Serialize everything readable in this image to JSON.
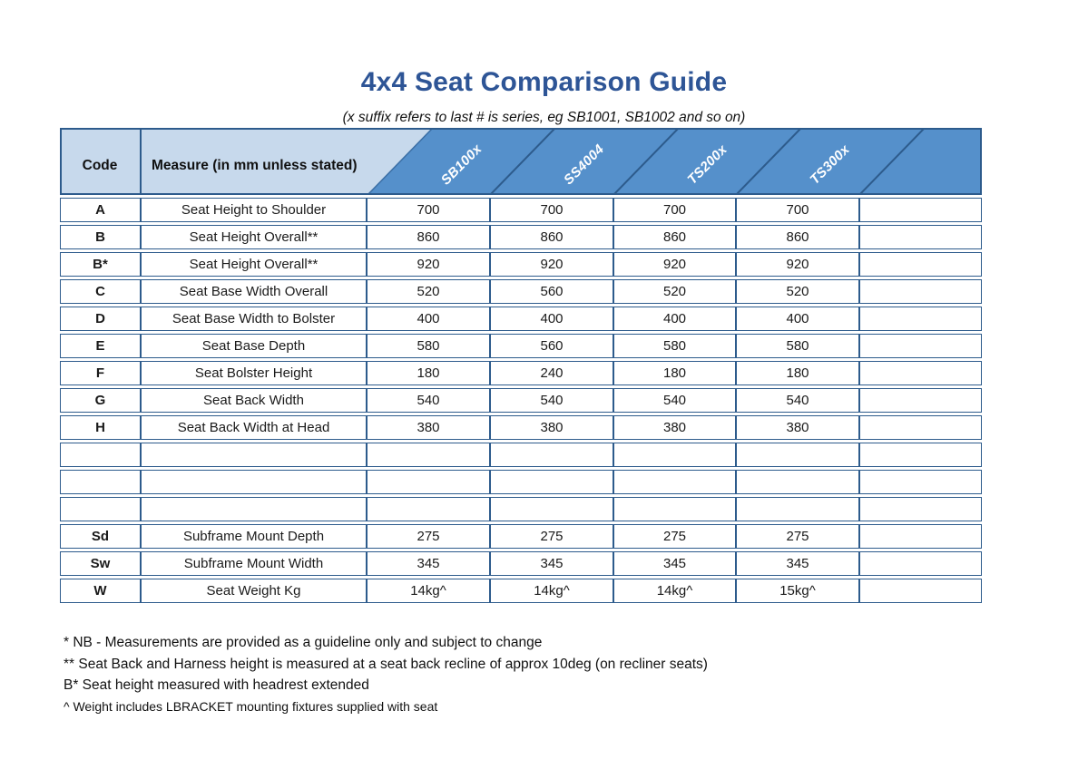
{
  "page": {
    "title": "4x4 Seat Comparison Guide",
    "subtitle": "(x suffix refers to last # is series, eg SB1001, SB1002 and so on)"
  },
  "table": {
    "code_header": "Code",
    "measure_header": "Measure (in mm unless stated)",
    "products": [
      "SB100x",
      "SS4004",
      "TS200x",
      "TS300x"
    ],
    "rows": [
      {
        "code": "A",
        "measure": "Seat Height to Shoulder",
        "values": [
          "700",
          "700",
          "700",
          "700"
        ]
      },
      {
        "code": "B",
        "measure": "Seat Height Overall**",
        "values": [
          "860",
          "860",
          "860",
          "860"
        ]
      },
      {
        "code": "B*",
        "measure": "Seat Height Overall**",
        "values": [
          "920",
          "920",
          "920",
          "920"
        ]
      },
      {
        "code": "C",
        "measure": "Seat Base Width Overall",
        "values": [
          "520",
          "560",
          "520",
          "520"
        ]
      },
      {
        "code": "D",
        "measure": "Seat Base Width to Bolster",
        "values": [
          "400",
          "400",
          "400",
          "400"
        ]
      },
      {
        "code": "E",
        "measure": "Seat Base Depth",
        "values": [
          "580",
          "560",
          "580",
          "580"
        ]
      },
      {
        "code": "F",
        "measure": "Seat Bolster Height",
        "values": [
          "180",
          "240",
          "180",
          "180"
        ]
      },
      {
        "code": "G",
        "measure": "Seat Back Width",
        "values": [
          "540",
          "540",
          "540",
          "540"
        ]
      },
      {
        "code": "H",
        "measure": "Seat Back Width at Head",
        "values": [
          "380",
          "380",
          "380",
          "380"
        ]
      },
      {
        "code": "",
        "measure": "",
        "values": [
          "",
          "",
          "",
          ""
        ]
      },
      {
        "code": "",
        "measure": "",
        "values": [
          "",
          "",
          "",
          ""
        ]
      },
      {
        "code": "",
        "measure": "",
        "values": [
          "",
          "",
          "",
          ""
        ]
      },
      {
        "code": "Sd",
        "measure": "Subframe Mount Depth",
        "values": [
          "275",
          "275",
          "275",
          "275"
        ]
      },
      {
        "code": "Sw",
        "measure": "Subframe Mount Width",
        "values": [
          "345",
          "345",
          "345",
          "345"
        ]
      },
      {
        "code": "W",
        "measure": "Seat Weight Kg",
        "values": [
          "14kg^",
          "14kg^",
          "14kg^",
          "15kg^"
        ]
      }
    ]
  },
  "footnotes": [
    "* NB - Measurements are provided as a guideline only and subject to change",
    "** Seat Back and Harness height is measured at a seat back recline of approx 10deg (on recliner seats)",
    "B* Seat height measured with headrest extended",
    "^ Weight includes LBRACKET mounting fixtures supplied with seat"
  ],
  "colors": {
    "title_blue": "#2e5596",
    "header_light_blue": "#c7d9ec",
    "header_dark_blue": "#5590cb",
    "grid_border": "#2d5b8c",
    "product_label_text": "#ffffff"
  }
}
